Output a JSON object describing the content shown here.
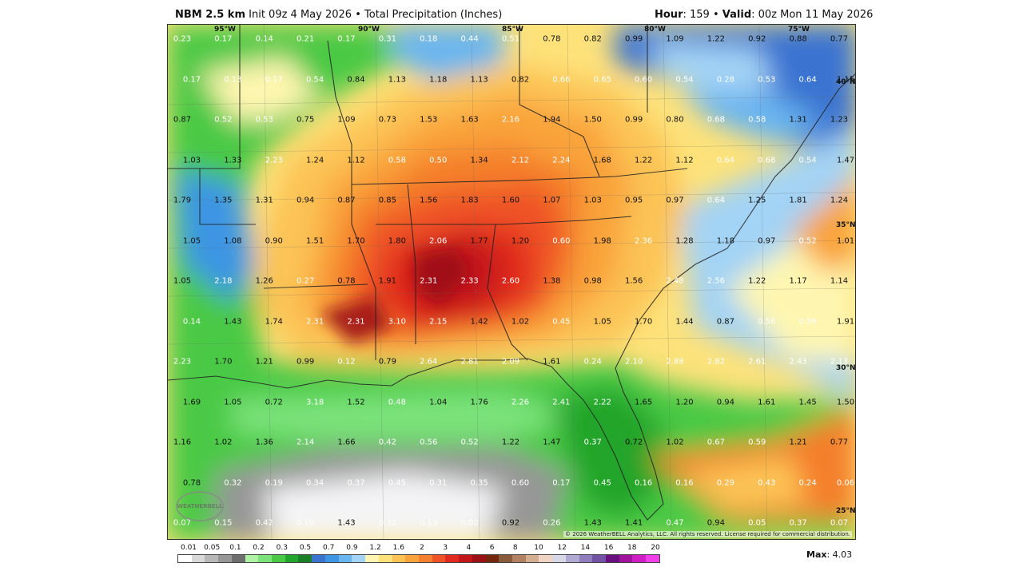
{
  "header": {
    "model": "NBM 2.5 km",
    "init": "Init 09z 4 May 2026",
    "sep": "•",
    "product": "Total Precipitation (Inches)",
    "hour_label": "Hour",
    "hour_value": "159",
    "valid_label": "Valid",
    "valid_value": "00z Mon 11 May 2026"
  },
  "map": {
    "longitude_labels": [
      "95°W",
      "90°W",
      "85°W",
      "80°W",
      "75°W"
    ],
    "latitude_labels": [
      "40°N",
      "35°N",
      "30°N",
      "25°N"
    ],
    "copyright": "© 2026 WeatherBELL Analytics, LLC. All rights reserved. License required for commercial distribution.",
    "logo_text": "WEATHERBELL",
    "values": [
      "0.23",
      "0.17",
      "0.14",
      "0.21",
      "0.17",
      "0.31",
      "0.18",
      "0.44",
      "0.51",
      "0.78",
      "0.82",
      "0.99",
      "1.09",
      "1.22",
      "0.92",
      "0.88",
      "0.77",
      "0.17",
      "0.13",
      "0.17",
      "0.54",
      "0.84",
      "1.13",
      "1.18",
      "1.13",
      "0.82",
      "0.66",
      "0.65",
      "0.60",
      "0.54",
      "0.28",
      "0.53",
      "0.64",
      "1.15",
      "0.87",
      "0.52",
      "0.53",
      "0.75",
      "1.09",
      "0.73",
      "1.53",
      "1.63",
      "2.16",
      "1.94",
      "1.50",
      "0.99",
      "0.80",
      "0.68",
      "0.58",
      "1.31",
      "1.23",
      "1.03",
      "1.33",
      "2.23",
      "1.24",
      "1.12",
      "0.58",
      "0.50",
      "1.34",
      "2.12",
      "2.24",
      "1.68",
      "1.22",
      "1.12",
      "0.64",
      "0.68",
      "0.54",
      "1.47",
      "1.79",
      "1.35",
      "1.31",
      "0.94",
      "0.87",
      "0.85",
      "1.56",
      "1.83",
      "1.60",
      "1.07",
      "1.03",
      "0.95",
      "0.97",
      "0.64",
      "1.25",
      "1.81",
      "1.24",
      "1.05",
      "1.08",
      "0.90",
      "1.51",
      "1.70",
      "1.80",
      "2.06",
      "1.77",
      "1.20",
      "0.60",
      "1.98",
      "2.36",
      "1.28",
      "1.18",
      "0.97",
      "0.52",
      "1.01",
      "1.05",
      "2.18",
      "1.26",
      "0.27",
      "0.78",
      "1.91",
      "2.31",
      "2.33",
      "2.60",
      "1.38",
      "0.98",
      "1.56",
      "2.48",
      "2.56",
      "1.22",
      "1.17",
      "1.14",
      "0.14",
      "1.43",
      "1.74",
      "2.31",
      "2.31",
      "3.10",
      "2.15",
      "1.42",
      "1.02",
      "0.45",
      "1.05",
      "1.70",
      "1.44",
      "0.87",
      "0.56",
      "0.59",
      "1.91",
      "2.23",
      "1.70",
      "1.21",
      "0.99",
      "0.12",
      "0.79",
      "2.64",
      "2.81",
      "2.09",
      "1.61",
      "0.24",
      "2.10",
      "2.88",
      "2.82",
      "2.61",
      "2.43",
      "2.13",
      "1.69",
      "1.05",
      "0.72",
      "3.18",
      "1.52",
      "0.48",
      "1.04",
      "1.76",
      "2.26",
      "2.41",
      "2.22",
      "1.65",
      "1.20",
      "0.94",
      "1.61",
      "1.45",
      "1.50",
      "1.16",
      "1.02",
      "1.36",
      "2.14",
      "1.66",
      "0.42",
      "0.56",
      "0.52",
      "1.22",
      "1.47",
      "0.37",
      "0.72",
      "1.02",
      "0.67",
      "0.59",
      "1.21",
      "0.77",
      "0.78",
      "0.32",
      "0.19",
      "0.34",
      "0.37",
      "0.45",
      "0.31",
      "0.35",
      "0.60",
      "0.17",
      "0.45",
      "0.16",
      "0.16",
      "0.29",
      "0.43",
      "0.24",
      "0.06",
      "0.07",
      "0.15",
      "0.42",
      "0.10",
      "1.43",
      "0.32",
      "0.13",
      "0.02",
      "0.92",
      "0.26",
      "1.43",
      "1.41",
      "0.47",
      "0.94",
      "0.05",
      "0.37",
      "0.07"
    ]
  },
  "legend": {
    "ticks": [
      "0.01",
      "0.05",
      "0.1",
      "0.2",
      "0.3",
      "0.5",
      "0.7",
      "0.9",
      "1.2",
      "1.6",
      "2",
      "3",
      "4",
      "6",
      "8",
      "10",
      "12",
      "14",
      "16",
      "18",
      "20"
    ],
    "colors": [
      "#ffffff",
      "#d9d9d9",
      "#b8b8b8",
      "#969696",
      "#6e6e6e",
      "#aef2a6",
      "#7be37a",
      "#49c944",
      "#22a52c",
      "#1a7f27",
      "#3b73d1",
      "#3d95e3",
      "#69b5f0",
      "#a3d3f5",
      "#fef6b0",
      "#fde27a",
      "#fcc354",
      "#f9a33a",
      "#f47f2c",
      "#ef5227",
      "#e02a1e",
      "#c3161a",
      "#9b1014",
      "#75270e",
      "#8a5b3a",
      "#b28162",
      "#d5ad90",
      "#efd4c4",
      "#d6d8e8",
      "#b2a9d3",
      "#8f7dbd",
      "#7152a4",
      "#6a0f7f",
      "#a0139a",
      "#cf1ec4",
      "#f03ee8"
    ],
    "max_label": "Max",
    "max_value": "4.03"
  }
}
